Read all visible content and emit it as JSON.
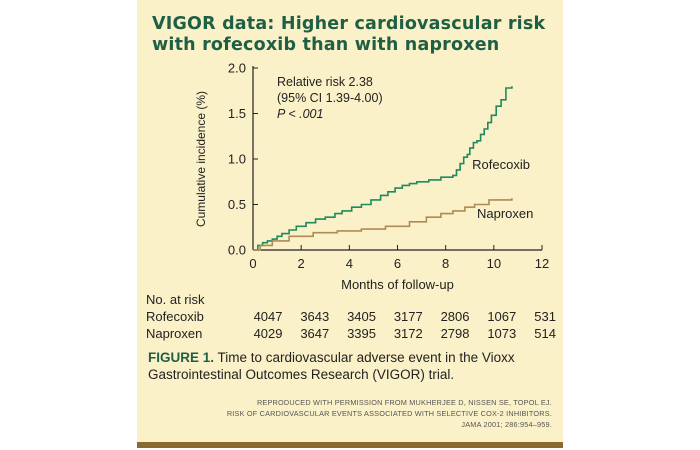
{
  "title": "VIGOR data: Higher cardiovascular risk with rofecoxib than with naproxen",
  "colors": {
    "background": "#fbf1c8",
    "title": "#1f5f45",
    "rofecoxib": "#1e8a5e",
    "naproxen": "#b08a55",
    "rule": "#8a6a2e"
  },
  "chart_data": {
    "type": "line",
    "title": "VIGOR data: Higher cardiovascular risk with rofecoxib than with naproxen",
    "xlabel": "Months of follow-up",
    "ylabel": "Cumulative incidence (%)",
    "xlim": [
      0,
      12
    ],
    "ylim": [
      0,
      2.0
    ],
    "xticks": [
      0,
      2,
      4,
      6,
      8,
      10,
      12
    ],
    "yticks": [
      0,
      0.5,
      1.0,
      1.5,
      2.0
    ],
    "xtick_labels": [
      "0",
      "2",
      "4",
      "6",
      "8",
      "10",
      "12"
    ],
    "ytick_labels": [
      "0.0",
      "0.5",
      "1.0",
      "1.5",
      "2.0"
    ],
    "grid": false,
    "step": true,
    "annotation": [
      "Relative risk 2.38",
      "(95% CI 1.39-4.00)",
      "P < .001"
    ],
    "series": [
      {
        "name": "Rofecoxib",
        "x": [
          0,
          0.2,
          0.4,
          0.6,
          0.8,
          1.0,
          1.2,
          1.5,
          1.8,
          2.2,
          2.6,
          3.0,
          3.4,
          3.7,
          4.1,
          4.5,
          4.9,
          5.3,
          5.6,
          5.9,
          6.2,
          6.5,
          6.8,
          7.3,
          7.8,
          8.3,
          8.45,
          8.6,
          8.75,
          8.9,
          9.0,
          9.15,
          9.3,
          9.45,
          9.6,
          9.75,
          9.9,
          10.1,
          10.3,
          10.5,
          10.75
        ],
        "values": [
          0,
          0.05,
          0.08,
          0.1,
          0.12,
          0.15,
          0.18,
          0.22,
          0.26,
          0.3,
          0.34,
          0.36,
          0.4,
          0.43,
          0.47,
          0.5,
          0.55,
          0.6,
          0.64,
          0.68,
          0.71,
          0.73,
          0.75,
          0.77,
          0.8,
          0.82,
          0.88,
          0.95,
          1.02,
          1.05,
          1.12,
          1.18,
          1.2,
          1.27,
          1.33,
          1.4,
          1.48,
          1.58,
          1.65,
          1.78,
          1.8
        ]
      },
      {
        "name": "Naproxen",
        "x": [
          0,
          0.3,
          0.8,
          1.5,
          2.5,
          3.5,
          4.5,
          5.5,
          6.5,
          7.2,
          7.8,
          8.3,
          8.8,
          9.2,
          9.8,
          10.75
        ],
        "values": [
          0,
          0.05,
          0.1,
          0.15,
          0.19,
          0.21,
          0.23,
          0.26,
          0.31,
          0.36,
          0.4,
          0.43,
          0.47,
          0.5,
          0.55,
          0.57
        ]
      }
    ]
  },
  "risk_table": {
    "header": "No. at risk",
    "rows": [
      {
        "label": "Rofecoxib",
        "values": [
          "4047",
          "3643",
          "3405",
          "3177",
          "2806",
          "1067",
          "531"
        ]
      },
      {
        "label": "Naproxen",
        "values": [
          "4029",
          "3647",
          "3395",
          "3172",
          "2798",
          "1073",
          "514"
        ]
      }
    ]
  },
  "caption": {
    "label": "FIGURE 1.",
    "text": "Time to cardiovascular adverse event in the Vioxx Gastrointestinal Outcomes Research (VIGOR) trial."
  },
  "credit": [
    "REPRODUCED WITH PERMISSION FROM MUKHERJEE D, NISSEN SE, TOPOL EJ.",
    "RISK OF CARDIOVASCULAR EVENTS ASSOCIATED WITH SELECTIVE COX-2 INHIBITORS.",
    "JAMA 2001; 286:954–959."
  ]
}
